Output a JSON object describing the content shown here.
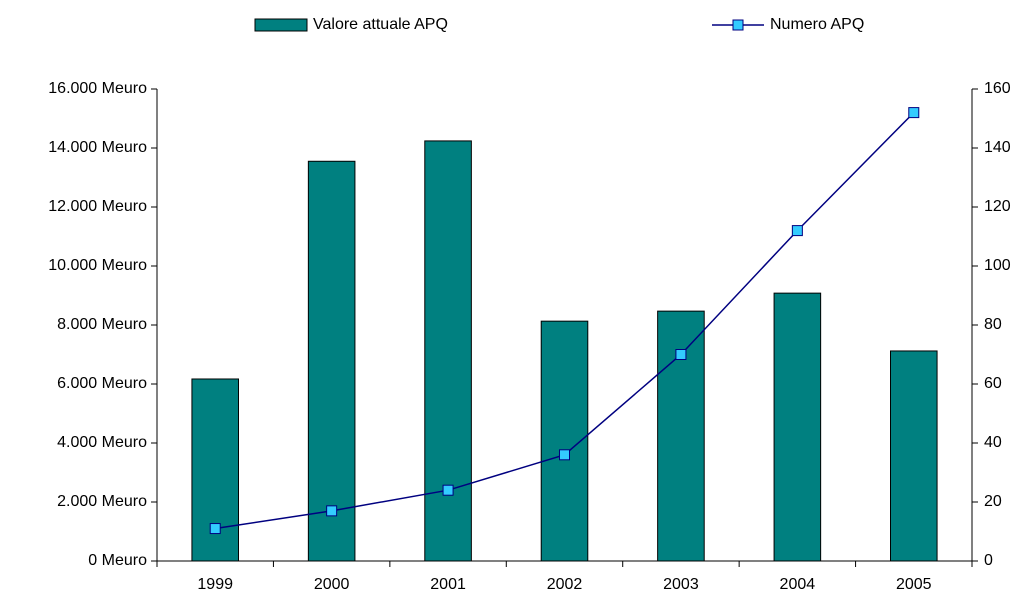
{
  "chart_data": {
    "type": "bar_line",
    "categories": [
      "1999",
      "2000",
      "2001",
      "2002",
      "2003",
      "2004",
      "2005"
    ],
    "series": [
      {
        "name": "Valore attuale APQ",
        "type": "bar",
        "color": "#008080",
        "values": [
          6170,
          13550,
          14240,
          8130,
          8470,
          9080,
          7120
        ]
      },
      {
        "name": "Numero APQ",
        "type": "line",
        "axis": "y2",
        "color": "#000080",
        "marker_color": "#33ccff",
        "values": [
          11,
          17,
          24,
          36,
          70,
          112,
          152
        ]
      }
    ],
    "ylim": [
      0,
      16000
    ],
    "yticks": [
      {
        "value": 0,
        "label": "0 Meuro"
      },
      {
        "value": 2000,
        "label": "2.000 Meuro"
      },
      {
        "value": 4000,
        "label": "4.000 Meuro"
      },
      {
        "value": 6000,
        "label": "6.000 Meuro"
      },
      {
        "value": 8000,
        "label": "8.000 Meuro"
      },
      {
        "value": 10000,
        "label": "10.000 Meuro"
      },
      {
        "value": 12000,
        "label": "12.000 Meuro"
      },
      {
        "value": 14000,
        "label": "14.000 Meuro"
      },
      {
        "value": 16000,
        "label": "16.000 Meuro"
      }
    ],
    "y2lim": [
      0,
      160
    ],
    "y2ticks": [
      0,
      20,
      40,
      60,
      80,
      100,
      120,
      140,
      160
    ],
    "legend": "top",
    "grid": false
  }
}
